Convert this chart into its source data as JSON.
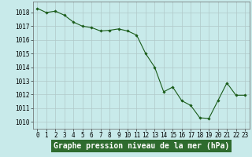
{
  "x": [
    0,
    1,
    2,
    3,
    4,
    5,
    6,
    7,
    8,
    9,
    10,
    11,
    12,
    13,
    14,
    15,
    16,
    17,
    18,
    19,
    20,
    21,
    22,
    23
  ],
  "y": [
    1018.3,
    1018.0,
    1018.1,
    1017.8,
    1017.3,
    1017.0,
    1016.9,
    1016.65,
    1016.7,
    1016.8,
    1016.65,
    1016.35,
    1015.0,
    1014.0,
    1012.2,
    1012.55,
    1011.55,
    1011.2,
    1010.3,
    1010.25,
    1011.55,
    1012.85,
    1011.95,
    1011.95
  ],
  "line_color": "#1a5c1a",
  "marker_color": "#1a5c1a",
  "bg_color": "#c8eaea",
  "grid_color": "#b0c8c8",
  "xlabel": "Graphe pression niveau de la mer (hPa)",
  "xlabel_bg": "#2e6b2e",
  "xlabel_fg": "#ffffff",
  "ylim": [
    1009.5,
    1018.8
  ],
  "xlim": [
    -0.5,
    23.5
  ],
  "yticks": [
    1010,
    1011,
    1012,
    1013,
    1014,
    1015,
    1016,
    1017,
    1018
  ],
  "xticks": [
    0,
    1,
    2,
    3,
    4,
    5,
    6,
    7,
    8,
    9,
    10,
    11,
    12,
    13,
    14,
    15,
    16,
    17,
    18,
    19,
    20,
    21,
    22,
    23
  ],
  "tick_fontsize": 5.5,
  "xlabel_fontsize": 7
}
